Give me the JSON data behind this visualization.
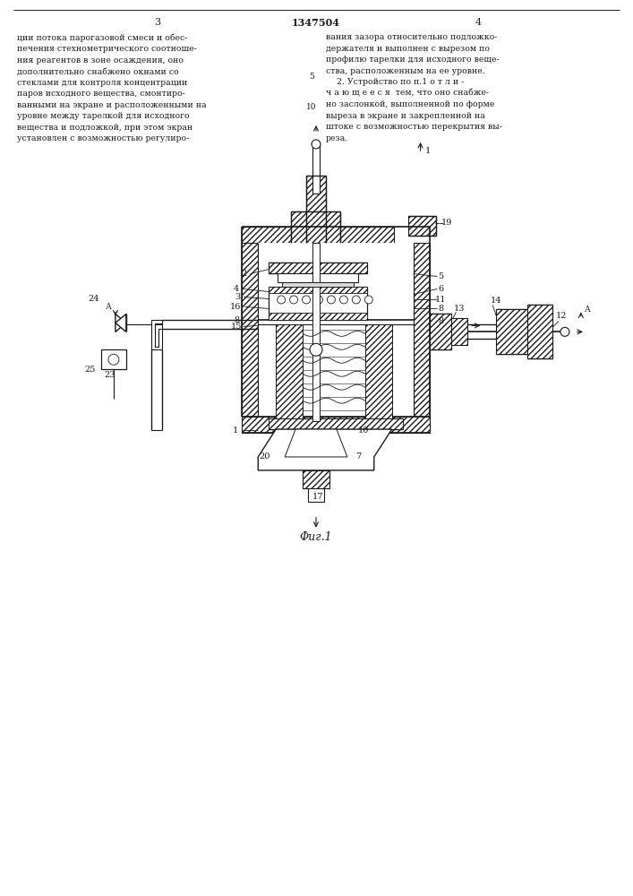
{
  "bg_color": "#ffffff",
  "lc": "#1a1a1a",
  "page_num_left": "3",
  "page_num_center": "1347504",
  "page_num_right": "4",
  "fig_caption": "Φиг.1",
  "col_left": "ции потока парогазовой смеси и обес-\nпечения стехнометрического соотноше-\nния реагентов в зоне осаждения, оно\nдополнительно снабжено окнами со\nстеклами для контроля концентрации\nпаров исходного вещества, смонтиро-\nванными на экране и расположенными на\nуровне между тарелкой для исходного\nвещества и подложкой, при этом экран\nустановлен с возможностью регулиро-",
  "col_right": "вания зазора относительно подложко-\nдержателя и выполнен с вырезом по\nпрофилю тарелки для исходного веще-\nства, расположенным на ее уровне.\n    2. Устройство по п.1 о т л и -\nч а ю щ е е с я  тем, что оно снабже-\nно заслонкой, выполненной по форме\nвыреза в экране и закрепленной на\nштоке с возможностью перекрытия вы-\nреза.",
  "lnum5": "5",
  "lnum10": "10"
}
